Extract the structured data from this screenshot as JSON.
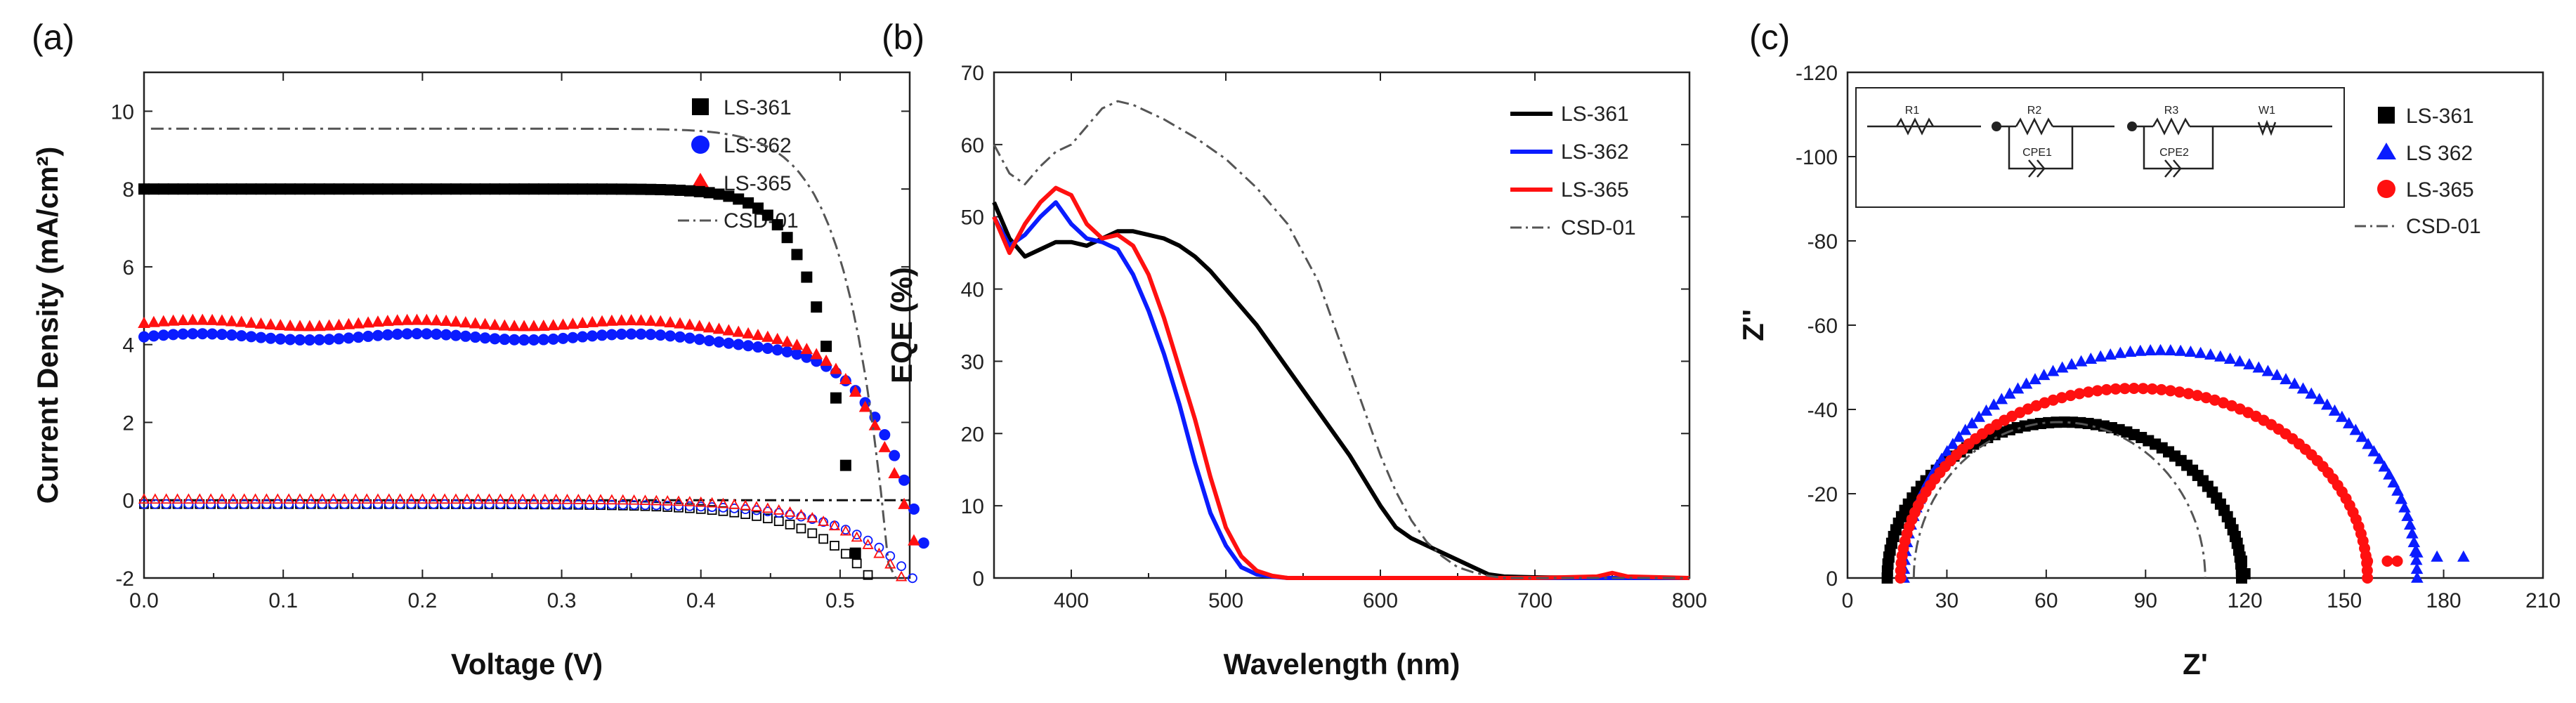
{
  "colors": {
    "black": "#000000",
    "blue": "#0a1cff",
    "red": "#ff1010",
    "gray": "#555555"
  },
  "chart_data": [
    {
      "panel_label": "(a)",
      "type": "scatter",
      "xlabel": "Voltage (V)",
      "ylabel": "Current Density (mA/cm²)",
      "xlim": [
        0.0,
        0.55
      ],
      "ylim": [
        -2,
        11
      ],
      "xticks": [
        "0.0",
        "0.1",
        "0.2",
        "0.3",
        "0.4",
        "0.5"
      ],
      "yticks": [
        "-2",
        "0",
        "2",
        "4",
        "6",
        "8",
        "10"
      ],
      "legend": [
        "LS-361",
        "LS-362",
        "LS-365",
        "CSD-01"
      ],
      "series": [
        {
          "name": "LS-361",
          "style": "square",
          "jsc": 8.0,
          "voc": 0.507,
          "n": 2.7
        },
        {
          "name": "LS-362",
          "style": "circle",
          "jsc": 4.2,
          "voc": 0.551,
          "n": 2.3
        },
        {
          "name": "LS-365",
          "style": "triangle",
          "jsc": 4.55,
          "voc": 0.545,
          "n": 2.3
        },
        {
          "name": "CSD-01",
          "style": "dashdot",
          "jsc": 9.55,
          "voc": 0.53,
          "n": 3.0
        },
        {
          "name": "LS-361 dark",
          "style": "square-open",
          "jsc": 0.0,
          "voc": 0.47,
          "n": 1.2
        },
        {
          "name": "LS-362 dark",
          "style": "circle-open",
          "jsc": 0.0,
          "voc": 0.5,
          "n": 1.2
        },
        {
          "name": "LS-365 dark",
          "style": "triangle-open",
          "jsc": 0.0,
          "voc": 0.49,
          "n": 1.2
        }
      ]
    },
    {
      "panel_label": "(b)",
      "type": "line",
      "xlabel": "Wavelength (nm)",
      "ylabel": "EQE (%)",
      "xlim": [
        350,
        800
      ],
      "ylim": [
        0,
        70
      ],
      "xticks": [
        "400",
        "500",
        "600",
        "700",
        "800"
      ],
      "yticks": [
        "0",
        "10",
        "20",
        "30",
        "40",
        "50",
        "60",
        "70"
      ],
      "legend": [
        "LS-361",
        "LS-362",
        "LS-365",
        "CSD-01"
      ],
      "series": [
        {
          "name": "LS-361",
          "x": [
            350,
            360,
            370,
            380,
            390,
            400,
            410,
            420,
            430,
            440,
            450,
            460,
            470,
            480,
            490,
            500,
            520,
            540,
            560,
            580,
            600,
            610,
            620,
            640,
            660,
            670,
            680,
            700,
            750,
            800
          ],
          "y": [
            52,
            47,
            44.5,
            45.5,
            46.5,
            46.5,
            46,
            47,
            48,
            48,
            47.5,
            47,
            46,
            44.5,
            42.5,
            40,
            35,
            29,
            23,
            17,
            10,
            7,
            5.5,
            3.5,
            1.5,
            0.5,
            0.2,
            0.1,
            0,
            0
          ]
        },
        {
          "name": "LS-362",
          "x": [
            350,
            360,
            370,
            380,
            390,
            400,
            410,
            420,
            430,
            440,
            450,
            460,
            470,
            480,
            490,
            500,
            510,
            520,
            530,
            540,
            560,
            600,
            700,
            800
          ],
          "y": [
            50,
            46,
            47.5,
            50,
            52,
            49,
            47,
            46.5,
            45.5,
            42,
            37,
            31,
            24,
            16,
            9,
            4.5,
            1.5,
            0.5,
            0.2,
            0,
            0,
            0,
            0,
            0
          ]
        },
        {
          "name": "LS-365",
          "x": [
            350,
            360,
            370,
            380,
            390,
            400,
            410,
            420,
            430,
            440,
            450,
            460,
            470,
            480,
            490,
            500,
            510,
            520,
            530,
            540,
            560,
            600,
            700,
            740,
            750,
            760,
            800
          ],
          "y": [
            50,
            45,
            49,
            52,
            54,
            53,
            49,
            47,
            47.5,
            46,
            42,
            36,
            29,
            22,
            14,
            7,
            3,
            1,
            0.3,
            0,
            0,
            0,
            0,
            0.2,
            0.7,
            0.2,
            0
          ]
        },
        {
          "name": "CSD-01",
          "x": [
            350,
            360,
            370,
            380,
            390,
            400,
            410,
            420,
            430,
            440,
            460,
            480,
            500,
            520,
            540,
            560,
            570,
            580,
            590,
            600,
            610,
            620,
            630,
            640,
            650,
            660,
            670,
            680,
            700,
            800
          ],
          "y": [
            60,
            56,
            54.5,
            57,
            59,
            60,
            62.5,
            65,
            66,
            65.5,
            63.5,
            61,
            58,
            54,
            49,
            41,
            35,
            29,
            23,
            17,
            12,
            8,
            5,
            3,
            1.5,
            0.8,
            0.3,
            0,
            0,
            0
          ]
        }
      ]
    },
    {
      "panel_label": "(c)",
      "type": "scatter",
      "xlabel": "Z'",
      "ylabel": "Z''",
      "xlim": [
        0,
        210
      ],
      "ylim": [
        0,
        -120
      ],
      "xticks": [
        "0",
        "30",
        "60",
        "90",
        "120",
        "150",
        "180",
        "210"
      ],
      "yticks": [
        "0",
        "-20",
        "-40",
        "-60",
        "-80",
        "-100",
        "-120"
      ],
      "legend": [
        "LS-361",
        "LS 362",
        "LS-365",
        "CSD-01"
      ],
      "circuit_labels": [
        "R1",
        "R2",
        "CPE1",
        "R3",
        "CPE2",
        "W1"
      ],
      "series": [
        {
          "name": "LS-361",
          "style": "square",
          "arc": [
            12,
            119,
            -37
          ],
          "tail": [
            [
              119,
              -4
            ],
            [
              120,
              -1
            ]
          ]
        },
        {
          "name": "LS 362",
          "style": "triangle",
          "arc": [
            17,
            172,
            -54
          ],
          "tail": [
            [
              172,
              -6
            ],
            [
              178,
              -5
            ],
            [
              186,
              -5
            ]
          ]
        },
        {
          "name": "LS-365",
          "style": "circle",
          "arc": [
            16,
            157,
            -45
          ],
          "tail": [
            [
              157,
              -4
            ],
            [
              163,
              -4
            ],
            [
              166,
              -4
            ]
          ]
        },
        {
          "name": "CSD-01",
          "style": "dashdot",
          "arc": [
            20,
            108,
            -37
          ],
          "tail": []
        }
      ]
    }
  ]
}
